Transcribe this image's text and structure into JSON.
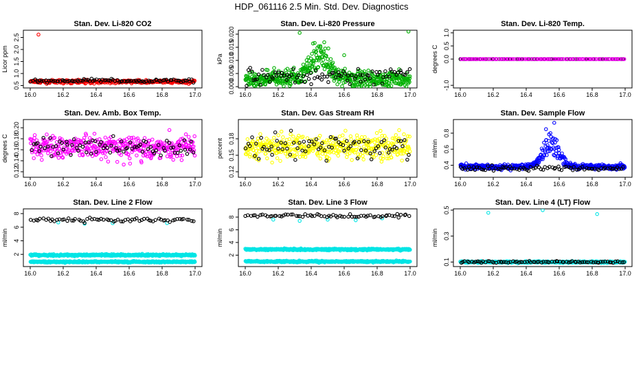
{
  "suptitle": "HDP_061116  2.5 Min. Std. Dev. Diagnostics",
  "chart_data": [
    {
      "type": "scatter",
      "title": "Stan. Dev. Li-820 CO2",
      "ylabel": "Licor ppm",
      "xlim": [
        16.0,
        17.0
      ],
      "xticks": [
        "16.0",
        "16.2",
        "16.4",
        "16.6",
        "16.8",
        "17.0"
      ],
      "ylim": [
        0.4,
        2.8
      ],
      "yticks": [
        0.5,
        1.0,
        1.5,
        2.0,
        2.5
      ],
      "ytick_labels": [
        "0.5",
        "1.0",
        "1.5",
        "2.0",
        "2.5"
      ],
      "series": [
        {
          "name": "red",
          "color": "#ff0000",
          "base": 0.66,
          "noise": 0.06,
          "n": 300,
          "spikes": [
            [
              16.05,
              2.62
            ]
          ]
        },
        {
          "name": "black",
          "color": "#000000",
          "base": 0.7,
          "noise": 0.06,
          "n": 90
        }
      ]
    },
    {
      "type": "scatter",
      "title": "Stan. Dev. Li-820 Pressure",
      "ylabel": "kPa",
      "xlim": [
        16.0,
        17.0
      ],
      "xticks": [
        "16.0",
        "16.2",
        "16.4",
        "16.6",
        "16.8",
        "17.0"
      ],
      "ylim": [
        -0.0005,
        0.0215
      ],
      "yticks": [
        0.0,
        0.005,
        0.01,
        0.015,
        0.02
      ],
      "ytick_labels": [
        "0.000",
        "0.005",
        "0.010",
        "0.015",
        "0.020"
      ],
      "series": [
        {
          "name": "green",
          "color": "#00b000",
          "base": 0.003,
          "noise": 0.003,
          "n": 520,
          "bump": [
            16.45,
            0.08,
            0.009
          ],
          "spikes": [
            [
              16.33,
              0.0205
            ],
            [
              16.99,
              0.021
            ],
            [
              16.6,
              0.012
            ],
            [
              16.5,
              0.0105
            ]
          ]
        },
        {
          "name": "black",
          "color": "#000000",
          "base": 0.004,
          "noise": 0.003,
          "n": 90
        }
      ]
    },
    {
      "type": "scatter",
      "title": "Stan. Dev. Li-820 Temp.",
      "ylabel": "degrees C",
      "xlim": [
        16.0,
        17.0
      ],
      "xticks": [
        "16.0",
        "16.2",
        "16.4",
        "16.6",
        "16.8",
        "17.0"
      ],
      "ylim": [
        -1.1,
        1.1
      ],
      "yticks": [
        -1.0,
        0.0,
        0.5,
        1.0
      ],
      "ytick_labels": [
        "-1.0",
        "0.0",
        "0.5",
        "1.0"
      ],
      "series": [
        {
          "name": "black",
          "color": "#000000",
          "base": 0.0,
          "noise": 0.0,
          "n": 90
        },
        {
          "name": "magenta",
          "color": "#ff00ff",
          "base": 0.0,
          "noise": 0.0,
          "n": 90
        }
      ]
    },
    {
      "type": "scatter",
      "title": "Stan. Dev. Amb. Box Temp.",
      "ylabel": "degrees C",
      "xlim": [
        16.0,
        17.0
      ],
      "xticks": [
        "16.0",
        "16.2",
        "16.4",
        "16.6",
        "16.8",
        "17.0"
      ],
      "ylim": [
        0.11,
        0.215
      ],
      "yticks": [
        0.12,
        0.14,
        0.16,
        0.18,
        0.2
      ],
      "ytick_labels": [
        "0.12",
        "0.14",
        "0.16",
        "0.18",
        "0.20"
      ],
      "series": [
        {
          "name": "magenta",
          "color": "#ff00ff",
          "base": 0.165,
          "noise": 0.02,
          "n": 420
        },
        {
          "name": "black",
          "color": "#000000",
          "base": 0.165,
          "noise": 0.015,
          "n": 80
        }
      ]
    },
    {
      "type": "scatter",
      "title": "Stan. Dev. Gas Stream RH",
      "ylabel": "percent",
      "xlim": [
        16.0,
        17.0
      ],
      "xticks": [
        "16.0",
        "16.2",
        "16.4",
        "16.6",
        "16.8",
        "17.0"
      ],
      "ylim": [
        0.11,
        0.215
      ],
      "yticks": [
        0.12,
        0.15,
        0.18
      ],
      "ytick_labels": [
        "0.12",
        "0.15",
        "0.18"
      ],
      "series": [
        {
          "name": "yellow",
          "color": "#ffff00",
          "base": 0.165,
          "noise": 0.02,
          "n": 420
        },
        {
          "name": "black",
          "color": "#000000",
          "base": 0.165,
          "noise": 0.018,
          "n": 80
        }
      ]
    },
    {
      "type": "scatter",
      "title": "Stan. Dev. Sample Flow",
      "ylabel": "ml/min",
      "xlim": [
        16.0,
        17.0
      ],
      "xticks": [
        "16.0",
        "16.2",
        "16.4",
        "16.6",
        "16.8",
        "17.0"
      ],
      "ylim": [
        0.25,
        0.97
      ],
      "yticks": [
        0.4,
        0.6,
        0.8
      ],
      "ytick_labels": [
        "0.4",
        "0.6",
        "0.8"
      ],
      "series": [
        {
          "name": "blue",
          "color": "#0000ff",
          "base": 0.38,
          "noise": 0.03,
          "n": 420,
          "bump": [
            16.55,
            0.07,
            0.3
          ],
          "spikes": [
            [
              16.57,
              0.93
            ],
            [
              16.52,
              0.85
            ]
          ]
        },
        {
          "name": "black",
          "color": "#000000",
          "base": 0.36,
          "noise": 0.03,
          "n": 80
        }
      ]
    },
    {
      "type": "scatter",
      "title": "Stan. Dev. Line 2 Flow",
      "ylabel": "ml/min",
      "xlim": [
        16.0,
        17.0
      ],
      "xticks": [
        "16.0",
        "16.2",
        "16.4",
        "16.6",
        "16.8",
        "17.0"
      ],
      "ylim": [
        0.2,
        8.7
      ],
      "yticks": [
        2,
        4,
        6,
        8
      ],
      "ytick_labels": [
        "2",
        "4",
        "6",
        "8"
      ],
      "series": [
        {
          "name": "cyan",
          "color": "#00e5e5",
          "base": 1.9,
          "noise": 0.12,
          "n": 480
        },
        {
          "name": "cyan2",
          "color": "#00e5e5",
          "base": 0.9,
          "noise": 0.1,
          "n": 480,
          "spikes": [
            [
              16.33,
              6.5
            ],
            [
              16.5,
              6.6
            ],
            [
              16.83,
              6.6
            ],
            [
              16.17,
              6.7
            ]
          ]
        },
        {
          "name": "black",
          "color": "#000000",
          "base": 7.1,
          "noise": 0.3,
          "n": 70
        }
      ]
    },
    {
      "type": "scatter",
      "title": "Stan. Dev. Line 3 Flow",
      "ylabel": "ml/min",
      "xlim": [
        16.0,
        17.0
      ],
      "xticks": [
        "16.0",
        "16.2",
        "16.4",
        "16.6",
        "16.8",
        "17.0"
      ],
      "ylim": [
        0.2,
        9.3
      ],
      "yticks": [
        2,
        4,
        6,
        8
      ],
      "ytick_labels": [
        "2",
        "4",
        "6",
        "8"
      ],
      "series": [
        {
          "name": "cyan",
          "color": "#00e5e5",
          "base": 2.9,
          "noise": 0.12,
          "n": 480
        },
        {
          "name": "cyan2",
          "color": "#00e5e5",
          "base": 1.0,
          "noise": 0.1,
          "n": 480,
          "spikes": [
            [
              16.17,
              7.6
            ],
            [
              16.33,
              7.4
            ],
            [
              16.5,
              7.6
            ],
            [
              16.83,
              7.8
            ],
            [
              16.67,
              7.5
            ]
          ]
        },
        {
          "name": "black",
          "color": "#000000",
          "base": 8.2,
          "noise": 0.3,
          "n": 70
        }
      ]
    },
    {
      "type": "scatter",
      "title": "Stan. Dev. Line 4 (LT) Flow",
      "ylabel": "ml/min",
      "xlim": [
        16.0,
        17.0
      ],
      "xticks": [
        "16.0",
        "16.2",
        "16.4",
        "16.6",
        "16.8",
        "17.0"
      ],
      "ylim": [
        0.065,
        0.51
      ],
      "yticks": [
        0.1,
        0.3,
        0.5
      ],
      "ytick_labels": [
        "0.1",
        "0.3",
        "0.5"
      ],
      "series": [
        {
          "name": "cyan",
          "color": "#00e5e5",
          "base": 0.1,
          "noise": 0.006,
          "n": 480,
          "spikes": [
            [
              16.17,
              0.48
            ],
            [
              16.5,
              0.5
            ],
            [
              16.83,
              0.47
            ]
          ]
        },
        {
          "name": "black",
          "color": "#000000",
          "base": 0.1,
          "noise": 0.006,
          "n": 80
        }
      ]
    }
  ]
}
